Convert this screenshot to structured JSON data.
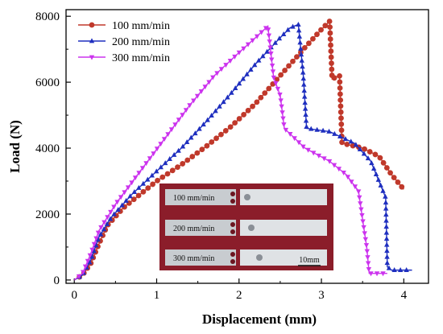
{
  "chart_data": {
    "type": "line",
    "xlabel": "Displacement (mm)",
    "ylabel": "Load (N)",
    "xlim": [
      -0.1,
      4.3
    ],
    "ylim": [
      -100,
      8200
    ],
    "x_ticks": [
      0,
      1,
      2,
      3,
      4
    ],
    "y_ticks": [
      0,
      2000,
      4000,
      6000,
      8000
    ],
    "legend_position": "top-left",
    "grid": false,
    "series": [
      {
        "name": "100 mm/min",
        "color": "#c0392b",
        "marker": "circle",
        "points": [
          [
            0.0,
            0
          ],
          [
            0.1,
            150
          ],
          [
            0.2,
            500
          ],
          [
            0.3,
            1100
          ],
          [
            0.4,
            1650
          ],
          [
            0.6,
            2200
          ],
          [
            0.8,
            2600
          ],
          [
            1.0,
            3000
          ],
          [
            1.3,
            3500
          ],
          [
            1.6,
            4050
          ],
          [
            1.9,
            4650
          ],
          [
            2.2,
            5350
          ],
          [
            2.5,
            6200
          ],
          [
            2.8,
            7050
          ],
          [
            3.0,
            7600
          ],
          [
            3.1,
            7850
          ],
          [
            3.13,
            6100
          ],
          [
            3.22,
            6200
          ],
          [
            3.25,
            4150
          ],
          [
            3.5,
            4000
          ],
          [
            3.7,
            3750
          ],
          [
            3.85,
            3200
          ],
          [
            3.95,
            2900
          ],
          [
            4.0,
            2750
          ]
        ]
      },
      {
        "name": "200 mm/min",
        "color": "#1f2fbf",
        "marker": "triangle-up",
        "points": [
          [
            0.0,
            0
          ],
          [
            0.1,
            150
          ],
          [
            0.2,
            600
          ],
          [
            0.3,
            1300
          ],
          [
            0.45,
            1900
          ],
          [
            0.7,
            2600
          ],
          [
            1.0,
            3300
          ],
          [
            1.3,
            4000
          ],
          [
            1.6,
            4800
          ],
          [
            1.9,
            5650
          ],
          [
            2.2,
            6550
          ],
          [
            2.5,
            7350
          ],
          [
            2.62,
            7650
          ],
          [
            2.72,
            7750
          ],
          [
            2.78,
            6200
          ],
          [
            2.82,
            4600
          ],
          [
            3.1,
            4500
          ],
          [
            3.4,
            4150
          ],
          [
            3.6,
            3600
          ],
          [
            3.78,
            2500
          ],
          [
            3.8,
            400
          ],
          [
            3.85,
            300
          ],
          [
            4.1,
            300
          ]
        ]
      },
      {
        "name": "300 mm/min",
        "color": "#cc33ee",
        "marker": "triangle-down",
        "points": [
          [
            0.0,
            0
          ],
          [
            0.1,
            200
          ],
          [
            0.2,
            800
          ],
          [
            0.3,
            1500
          ],
          [
            0.5,
            2300
          ],
          [
            0.8,
            3300
          ],
          [
            1.1,
            4300
          ],
          [
            1.4,
            5300
          ],
          [
            1.7,
            6200
          ],
          [
            2.0,
            6900
          ],
          [
            2.2,
            7350
          ],
          [
            2.35,
            7700
          ],
          [
            2.42,
            6150
          ],
          [
            2.5,
            5600
          ],
          [
            2.55,
            4600
          ],
          [
            2.8,
            4000
          ],
          [
            3.1,
            3600
          ],
          [
            3.3,
            3200
          ],
          [
            3.45,
            2700
          ],
          [
            3.52,
            1500
          ],
          [
            3.55,
            1000
          ],
          [
            3.58,
            200
          ],
          [
            3.8,
            200
          ]
        ]
      }
    ]
  },
  "inset": {
    "rows": [
      {
        "label": "100 mm/min"
      },
      {
        "label": "200 mm/min"
      },
      {
        "label": "300 mm/min"
      }
    ],
    "scale_label": "10mm"
  }
}
